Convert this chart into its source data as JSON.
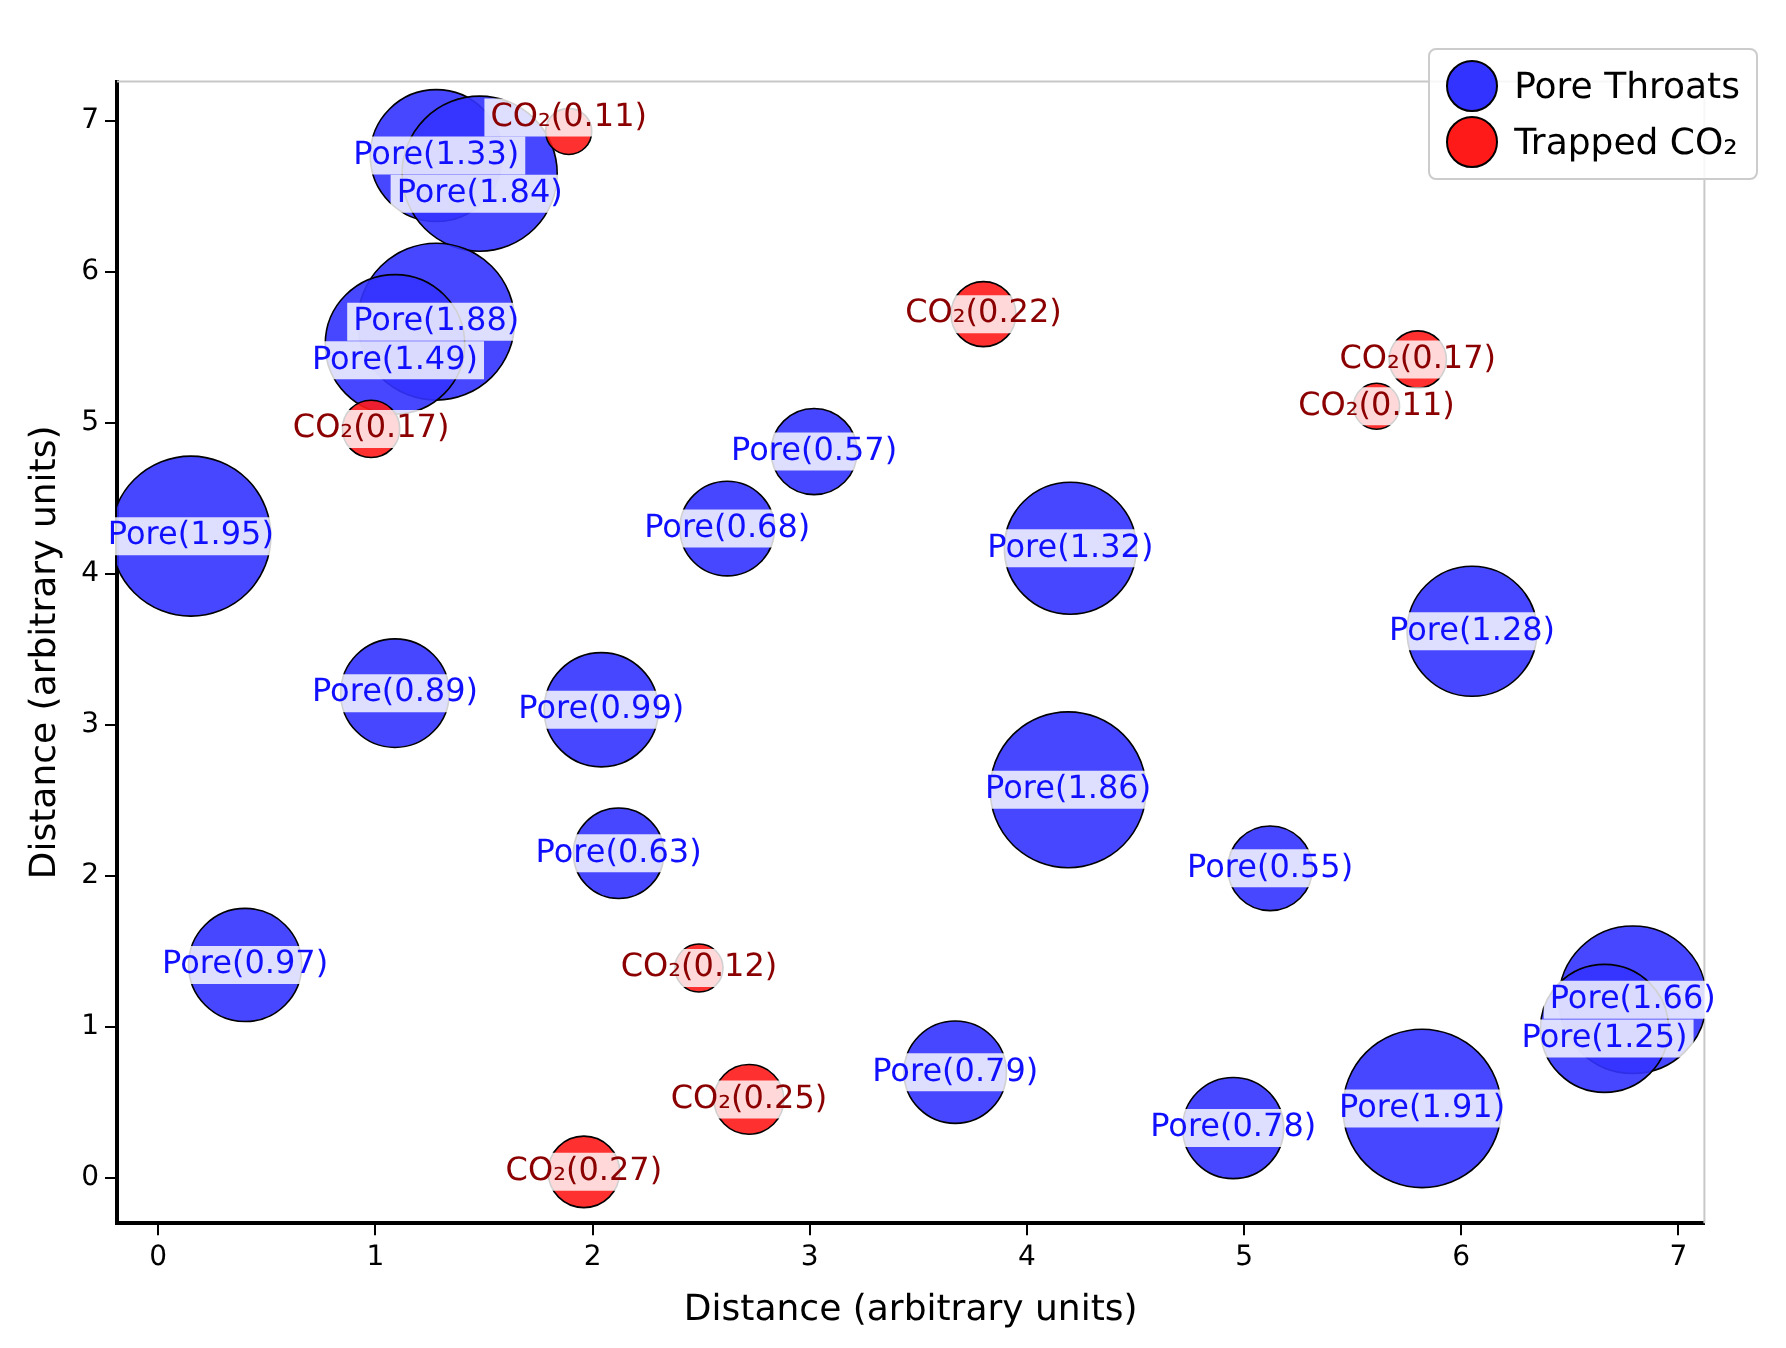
{
  "chart_data": {
    "type": "bubble",
    "xlabel": "Distance (arbitrary units)",
    "ylabel": "Distance (arbitrary units)",
    "xlim": [
      -0.19,
      7.12
    ],
    "ylim": [
      -0.3,
      7.26
    ],
    "xticks": [
      0,
      1,
      2,
      3,
      4,
      5,
      6,
      7
    ],
    "yticks": [
      0,
      1,
      2,
      3,
      4,
      5,
      6,
      7
    ],
    "grid": false,
    "legend": "top right",
    "series": [
      {
        "name": "Pore Throats",
        "color": "#3333ff",
        "x": [
          0.15,
          1.28,
          1.48,
          1.28,
          1.09,
          3.02,
          2.62,
          4.2,
          6.05,
          1.09,
          2.04,
          4.19,
          2.12,
          5.12,
          0.4,
          6.79,
          6.66,
          3.67,
          4.95,
          5.82
        ],
        "values": [
          4.25,
          6.77,
          6.65,
          5.67,
          5.52,
          4.81,
          4.3,
          4.17,
          3.62,
          3.21,
          3.1,
          2.57,
          2.15,
          2.05,
          1.41,
          1.18,
          0.99,
          0.7,
          0.33,
          0.46
        ],
        "sizes": [
          1,
          0.68,
          0.94,
          0.96,
          0.76,
          0.29,
          0.35,
          0.68,
          0.66,
          0.46,
          0.51,
          0.95,
          0.32,
          0.28,
          0.5,
          0.85,
          0.64,
          0.41,
          0.4,
          0.98
        ]
      },
      {
        "name": "Trapped CO₂",
        "color": "#ff1a1a",
        "x": [
          1.89,
          3.8,
          5.8,
          5.61,
          0.98,
          2.49,
          2.72,
          1.96
        ],
        "values": [
          6.93,
          5.72,
          5.42,
          5.11,
          4.96,
          1.39,
          0.52,
          0.04
        ],
        "sizes": [
          0.083,
          0.165,
          0.128,
          0.083,
          0.128,
          0.09,
          0.19,
          0.2
        ]
      }
    ],
    "annotations": [
      {
        "text": "Pore(1.95)",
        "x": 0.15,
        "y": 4.25
      },
      {
        "text": "Pore(1.33)",
        "x": 1.28,
        "y": 6.77
      },
      {
        "text": "Pore(1.84)",
        "x": 1.48,
        "y": 6.65
      },
      {
        "text": "Pore(1.88)",
        "x": 1.28,
        "y": 5.67
      },
      {
        "text": "Pore(1.49)",
        "x": 1.09,
        "y": 5.52
      },
      {
        "text": "Pore(0.57)",
        "x": 3.02,
        "y": 4.81
      },
      {
        "text": "Pore(0.68)",
        "x": 2.62,
        "y": 4.3
      },
      {
        "text": "Pore(1.32)",
        "x": 4.2,
        "y": 4.17
      },
      {
        "text": "Pore(1.28)",
        "x": 6.05,
        "y": 3.62
      },
      {
        "text": "Pore(0.89)",
        "x": 1.09,
        "y": 3.21
      },
      {
        "text": "Pore(0.99)",
        "x": 2.04,
        "y": 3.1
      },
      {
        "text": "Pore(1.86)",
        "x": 4.19,
        "y": 2.57
      },
      {
        "text": "Pore(0.63)",
        "x": 2.12,
        "y": 2.15
      },
      {
        "text": "Pore(0.55)",
        "x": 5.12,
        "y": 2.05
      },
      {
        "text": "Pore(0.97)",
        "x": 0.4,
        "y": 1.41
      },
      {
        "text": "Pore(1.66)",
        "x": 6.79,
        "y": 1.18
      },
      {
        "text": "Pore(1.25)",
        "x": 6.66,
        "y": 0.99
      },
      {
        "text": "Pore(0.79)",
        "x": 3.67,
        "y": 0.7
      },
      {
        "text": "Pore(0.78)",
        "x": 4.95,
        "y": 0.33
      },
      {
        "text": "Pore(1.91)",
        "x": 5.82,
        "y": 0.46
      },
      {
        "text": "CO₂(0.11)",
        "x": 1.89,
        "y": 6.93
      },
      {
        "text": "CO₂(0.22)",
        "x": 3.8,
        "y": 5.72
      },
      {
        "text": "CO₂(0.17)",
        "x": 5.8,
        "y": 5.42
      },
      {
        "text": "CO₂(0.11)",
        "x": 5.61,
        "y": 5.11
      },
      {
        "text": "CO₂(0.17)",
        "x": 0.98,
        "y": 4.96
      },
      {
        "text": "CO₂(0.12)",
        "x": 2.49,
        "y": 1.39
      },
      {
        "text": "CO₂(0.25)",
        "x": 2.72,
        "y": 0.52
      },
      {
        "text": "CO₂(0.27)",
        "x": 1.96,
        "y": 0.04
      }
    ]
  }
}
